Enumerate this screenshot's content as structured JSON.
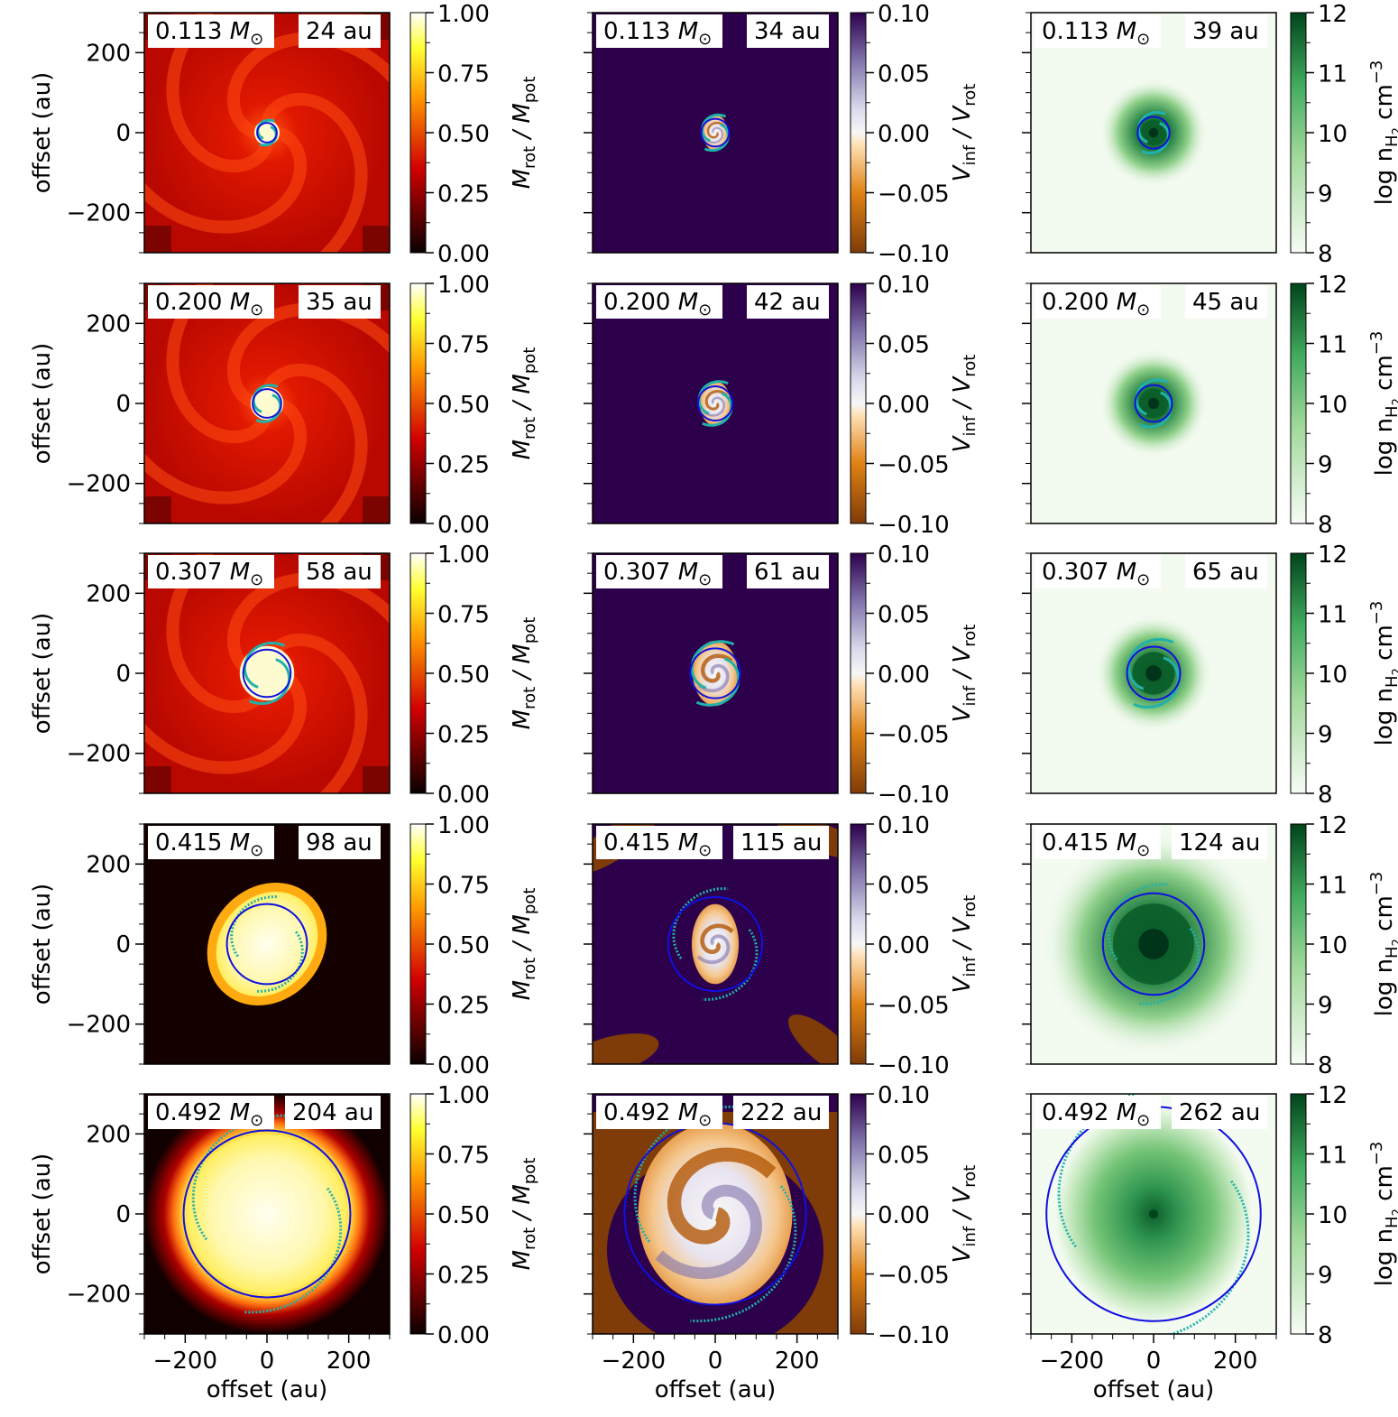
{
  "figure": {
    "axis_label": "offset (au)",
    "column_colorbar_labels": {
      "col1": {
        "main": "M",
        "sub": "rot",
        "mid": " / M",
        "sub2": "pot"
      },
      "col2": {
        "main": "V",
        "sub": "inf",
        "mid": " / V",
        "sub2": "rot"
      },
      "col3": {
        "pre": "log n",
        "sub": "H",
        "subsub": "2",
        "post": " cm",
        "sup": "−3"
      }
    },
    "mass_unit_symbol": "M",
    "mass_unit_sub": "⊙",
    "colors": {
      "disk_circle": "#1010e0",
      "boundary": "#20b2aa"
    }
  },
  "chart_data": {
    "type": "heatmap",
    "layout": "5 rows x 3 columns of image panels",
    "xlabel": "offset (au)",
    "ylabel": "offset (au)",
    "xlim": [
      -300,
      300
    ],
    "ylim": [
      -300,
      300
    ],
    "ticks": [
      -200,
      0,
      200
    ],
    "tick_labels": [
      "−200",
      "0",
      "200"
    ],
    "columns": [
      {
        "quantity": "Mrot / Mpot",
        "colormap": "hot",
        "colorbar_range": [
          0.0,
          1.0
        ],
        "colorbar_ticks": [
          "0.00",
          "0.25",
          "0.50",
          "0.75",
          "1.00"
        ]
      },
      {
        "quantity": "Vinf / Vrot",
        "colormap": "PuOr",
        "colorbar_range": [
          -0.1,
          0.1
        ],
        "colorbar_ticks": [
          "−0.10",
          "−0.05",
          "0.00",
          "0.05",
          "0.10"
        ]
      },
      {
        "quantity": "log nH2 cm^-3",
        "colormap": "Greens",
        "colorbar_range": [
          8,
          12
        ],
        "colorbar_ticks": [
          "8",
          "9",
          "10",
          "11",
          "12"
        ]
      }
    ],
    "rows": [
      {
        "mass": "0.113",
        "radii": [
          "24 au",
          "34 au",
          "39 au"
        ],
        "radii_values": [
          24,
          34,
          39
        ]
      },
      {
        "mass": "0.200",
        "radii": [
          "35 au",
          "42 au",
          "45 au"
        ],
        "radii_values": [
          35,
          42,
          45
        ]
      },
      {
        "mass": "0.307",
        "radii": [
          "58 au",
          "61 au",
          "65 au"
        ],
        "radii_values": [
          58,
          61,
          65
        ]
      },
      {
        "mass": "0.415",
        "radii": [
          "98 au",
          "115 au",
          "124 au"
        ],
        "radii_values": [
          98,
          115,
          124
        ]
      },
      {
        "mass": "0.492",
        "radii": [
          "204 au",
          "222 au",
          "262 au"
        ],
        "radii_values": [
          204,
          222,
          262
        ]
      }
    ]
  }
}
